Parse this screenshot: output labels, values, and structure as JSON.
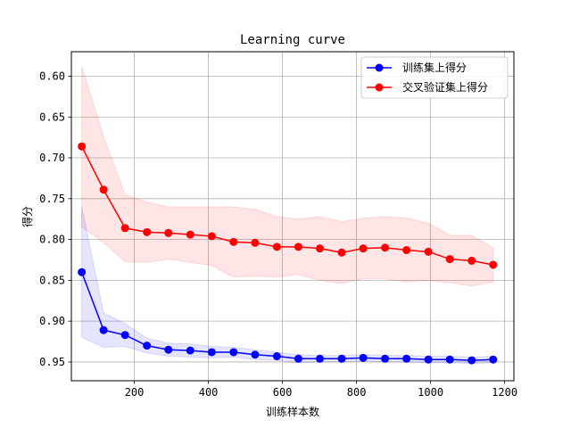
{
  "chart_data": {
    "type": "line",
    "title": "Learning curve",
    "xlabel": "训练样本数",
    "ylabel": "得分",
    "xlim": [
      30,
      1225
    ],
    "ylim": [
      0.973,
      0.57
    ],
    "y_inverted": true,
    "grid": true,
    "legend_position": "top-right",
    "x_ticks": [
      200,
      400,
      600,
      800,
      1000,
      1200
    ],
    "y_ticks": [
      0.6,
      0.65,
      0.7,
      0.75,
      0.8,
      0.85,
      0.9,
      0.95
    ],
    "x": [
      58,
      117,
      175,
      234,
      292,
      351,
      409,
      468,
      526,
      585,
      643,
      701,
      760,
      818,
      877,
      935,
      994,
      1052,
      1111,
      1169
    ],
    "series": [
      {
        "name": "训练集上得分",
        "color": "#0000ff",
        "band_color": "#0000ff",
        "values": [
          0.84,
          0.911,
          0.917,
          0.93,
          0.935,
          0.936,
          0.938,
          0.938,
          0.941,
          0.943,
          0.946,
          0.946,
          0.946,
          0.945,
          0.946,
          0.946,
          0.947,
          0.947,
          0.948,
          0.947
        ],
        "band_upper": [
          0.76,
          0.89,
          0.903,
          0.921,
          0.927,
          0.928,
          0.931,
          0.932,
          0.935,
          0.938,
          0.941,
          0.942,
          0.942,
          0.941,
          0.942,
          0.942,
          0.943,
          0.943,
          0.944,
          0.943
        ],
        "band_lower": [
          0.92,
          0.932,
          0.931,
          0.939,
          0.943,
          0.944,
          0.945,
          0.944,
          0.947,
          0.948,
          0.951,
          0.95,
          0.95,
          0.949,
          0.95,
          0.95,
          0.951,
          0.951,
          0.952,
          0.951
        ]
      },
      {
        "name": "交叉验证集上得分",
        "color": "#ff0000",
        "band_color": "#ff0000",
        "values": [
          0.686,
          0.739,
          0.786,
          0.791,
          0.792,
          0.794,
          0.796,
          0.803,
          0.804,
          0.809,
          0.809,
          0.811,
          0.816,
          0.811,
          0.81,
          0.813,
          0.815,
          0.824,
          0.826,
          0.831
        ],
        "band_upper": [
          0.588,
          0.674,
          0.745,
          0.754,
          0.76,
          0.76,
          0.76,
          0.76,
          0.763,
          0.772,
          0.775,
          0.772,
          0.778,
          0.774,
          0.772,
          0.774,
          0.78,
          0.795,
          0.795,
          0.81
        ],
        "band_lower": [
          0.784,
          0.804,
          0.827,
          0.828,
          0.824,
          0.828,
          0.832,
          0.846,
          0.845,
          0.846,
          0.843,
          0.85,
          0.854,
          0.848,
          0.848,
          0.852,
          0.85,
          0.853,
          0.857,
          0.852
        ]
      }
    ]
  }
}
